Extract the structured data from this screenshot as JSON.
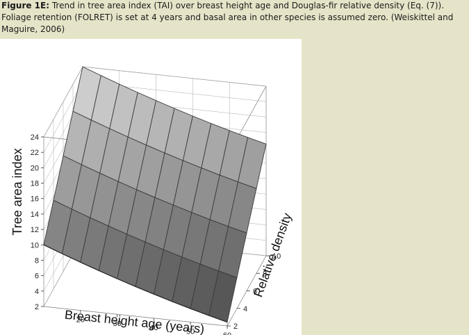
{
  "caption": {
    "label": "Figure 1E:",
    "text": " Trend in tree area index (TAI) over breast height age and Douglas-fir relative density (Eq. (7)). Foliage retention (FOLRET) is set at 4 years and basal area in other species is assumed zero. (Weiskittel and Maguire, 2006)"
  },
  "colors": {
    "background": "#e6e4c8",
    "panel": "#ffffff",
    "surface_light": "#d9d9d9",
    "surface_dark": "#4a4a4a",
    "grid": "#555555"
  },
  "chart_data": {
    "type": "surface",
    "title": "",
    "zlabel": "Tree area index",
    "xlabel": "Breast height age (years)",
    "ylabel": "Relative density",
    "x_ticks": [
      "20",
      "30",
      "40",
      "50",
      "60"
    ],
    "y_ticks": [
      "2",
      "4",
      "6",
      "8",
      "10"
    ],
    "z_ticks": [
      "2",
      "4",
      "6",
      "8",
      "10",
      "12",
      "14",
      "16",
      "18",
      "20",
      "22",
      "24"
    ],
    "x_range": [
      10,
      60
    ],
    "y_range": [
      2,
      10
    ],
    "z_range": [
      2,
      24
    ],
    "corners": [
      {
        "age": 10,
        "relative_density": 2,
        "tai": 10
      },
      {
        "age": 60,
        "relative_density": 2,
        "tai": 2.5
      },
      {
        "age": 10,
        "relative_density": 10,
        "tai": 24
      },
      {
        "age": 60,
        "relative_density": 10,
        "tai": 16.5
      }
    ],
    "grid": "on"
  }
}
